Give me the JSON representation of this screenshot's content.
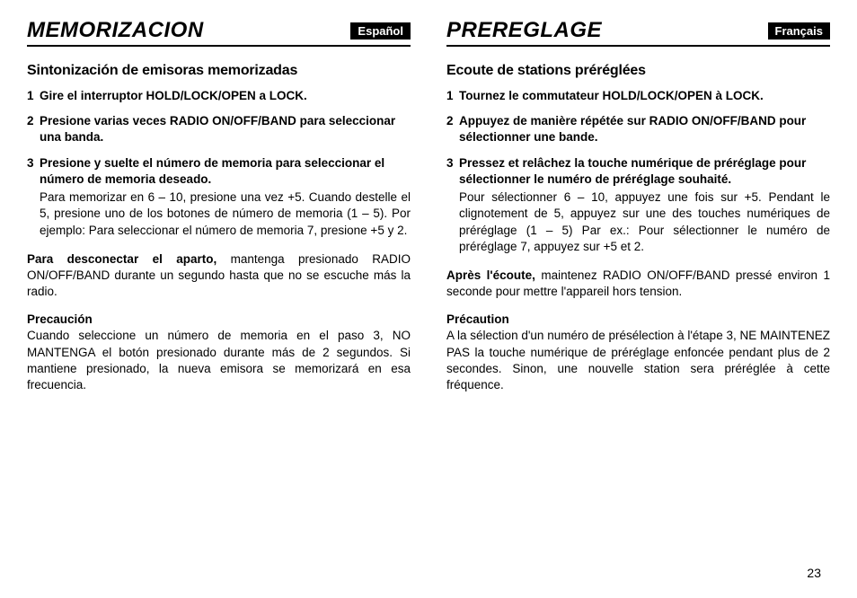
{
  "page_number": "23",
  "left": {
    "title": "MEMORIZACION",
    "lang": "Español",
    "subtitle": "Sintonización de emisoras memorizadas",
    "steps": [
      {
        "n": "1",
        "lead": "Gire el interruptor HOLD/LOCK/OPEN a LOCK.",
        "body": ""
      },
      {
        "n": "2",
        "lead": "Presione varias veces RADIO ON/OFF/BAND para seleccionar una banda.",
        "body": ""
      },
      {
        "n": "3",
        "lead": "Presione y suelte el número de memoria para seleccionar el número de memoria deseado.",
        "body": "Para memorizar en 6 – 10, presione una vez +5. Cuando destelle el 5, presione uno de los botones de número de memoria (1 – 5).\nPor ejemplo: Para seleccionar el número de memoria 7, presione +5 y 2."
      }
    ],
    "after_lead": "Para desconectar el aparto,",
    "after_body": " mantenga presionado RADIO ON/OFF/BAND durante un segundo hasta que no se escuche más la radio.",
    "caution_title": "Precaución",
    "caution_body": "Cuando seleccione un número de memoria en el paso 3, NO MANTENGA el botón presionado durante más de 2 segundos. Si mantiene presionado, la nueva emisora se memorizará en esa frecuencia."
  },
  "right": {
    "title": "PREREGLAGE",
    "lang": "Français",
    "subtitle": "Ecoute de stations préréglées",
    "steps": [
      {
        "n": "1",
        "lead": "Tournez le commutateur HOLD/LOCK/OPEN à LOCK.",
        "body": ""
      },
      {
        "n": "2",
        "lead": "Appuyez de manière répétée sur RADIO ON/OFF/BAND pour sélectionner une bande.",
        "body": ""
      },
      {
        "n": "3",
        "lead": "Pressez et relâchez la touche numérique de préréglage pour sélectionner le numéro de préréglage souhaité.",
        "body": "Pour sélectionner 6 – 10, appuyez une fois sur +5. Pendant le clignotement de 5, appuyez sur une des touches numériques de préréglage (1 – 5)\nPar ex.: Pour sélectionner le numéro de préréglage 7, appuyez sur +5 et 2."
      }
    ],
    "after_lead": "Après l'écoute,",
    "after_body": " maintenez RADIO ON/OFF/BAND pressé environ 1 seconde pour mettre l'appareil hors tension.",
    "caution_title": "Précaution",
    "caution_body": "A la sélection d'un numéro de présélection à l'étape 3, NE MAINTENEZ PAS la touche numérique de préréglage enfoncée pendant plus de 2 secondes. Sinon, une nouvelle station sera préréglée à cette fréquence."
  }
}
